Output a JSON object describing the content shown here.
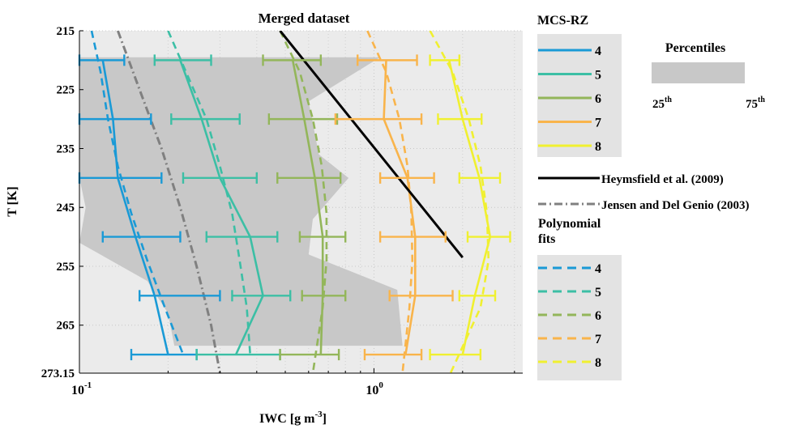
{
  "chart_data": {
    "type": "line",
    "title": "Merged dataset",
    "xlabel": "IWC  [g m",
    "xlabel_exp": "-3",
    "xlabel_close": "]",
    "ylabel": "T [K]",
    "xscale": "log",
    "xlim": [
      0.1,
      3.2
    ],
    "ylim": [
      273.15,
      215
    ],
    "yticks": [
      "215",
      "225",
      "235",
      "245",
      "255",
      "265",
      "273.15"
    ],
    "ytick_values": [
      215,
      225,
      235,
      245,
      255,
      265,
      273.15
    ],
    "xticks": [
      {
        "base": "10",
        "exp": "-1",
        "value": 0.1
      },
      {
        "base": "10",
        "exp": "0",
        "value": 1
      }
    ],
    "grid": true,
    "percentile_band": {
      "low": [
        [
          219.5,
          0.1
        ],
        [
          230.5,
          0.1
        ],
        [
          240,
          0.1
        ],
        [
          245,
          0.105
        ],
        [
          251,
          0.1
        ],
        [
          257.5,
          0.17
        ],
        [
          263,
          0.2
        ],
        [
          268.5,
          0.21
        ]
      ],
      "high": [
        [
          219.5,
          1.05
        ],
        [
          227,
          0.6
        ],
        [
          236,
          0.65
        ],
        [
          240,
          0.82
        ],
        [
          247,
          0.62
        ],
        [
          253,
          0.6
        ],
        [
          259,
          1.2
        ],
        [
          268.5,
          1.25
        ]
      ]
    },
    "series": [
      {
        "name": "4",
        "color": "#1a9ad6",
        "group": "mcs",
        "x": [
          0.12,
          0.13,
          0.135,
          0.155,
          0.18,
          0.2
        ],
        "y": [
          220,
          230,
          240,
          250,
          260,
          270
        ],
        "err_low": [
          0.1,
          0.1,
          0.1,
          0.12,
          0.16,
          0.15
        ],
        "err_high": [
          0.142,
          0.175,
          0.19,
          0.22,
          0.3,
          0.25
        ]
      },
      {
        "name": "5",
        "color": "#3cbfa5",
        "group": "mcs",
        "x": [
          0.22,
          0.26,
          0.3,
          0.38,
          0.42,
          0.34
        ],
        "y": [
          220,
          230,
          240,
          250,
          260,
          270
        ],
        "err_low": [
          0.18,
          0.205,
          0.225,
          0.27,
          0.33,
          0.25
        ],
        "err_high": [
          0.28,
          0.35,
          0.4,
          0.47,
          0.52,
          0.48
        ]
      },
      {
        "name": "6",
        "color": "#93b65a",
        "group": "mcs",
        "x": [
          0.53,
          0.58,
          0.63,
          0.67,
          0.67,
          0.66
        ],
        "y": [
          220,
          230,
          240,
          250,
          260,
          270
        ],
        "err_low": [
          0.42,
          0.44,
          0.47,
          0.56,
          0.57,
          0.48
        ],
        "err_high": [
          0.66,
          0.75,
          0.77,
          0.8,
          0.8,
          0.76
        ]
      },
      {
        "name": "7",
        "color": "#f9b44b",
        "group": "mcs",
        "x": [
          1.1,
          1.08,
          1.3,
          1.38,
          1.38,
          1.28
        ],
        "y": [
          220,
          230,
          240,
          250,
          260,
          270
        ],
        "err_low": [
          0.88,
          0.74,
          1.05,
          1.05,
          1.13,
          0.93
        ],
        "err_high": [
          1.4,
          1.45,
          1.6,
          1.75,
          1.85,
          1.45
        ]
      },
      {
        "name": "8",
        "color": "#f0f030",
        "group": "mcs",
        "x": [
          1.8,
          2.0,
          2.28,
          2.48,
          2.2,
          2.0
        ],
        "y": [
          220,
          230,
          240,
          250,
          260,
          270
        ],
        "err_low": [
          1.55,
          1.65,
          1.95,
          2.08,
          1.95,
          1.55
        ],
        "err_high": [
          1.95,
          2.32,
          2.68,
          2.9,
          2.58,
          2.3
        ]
      },
      {
        "name": "4",
        "color": "#1a9ad6",
        "group": "poly",
        "dash": "9,6",
        "x": [
          0.11,
          0.118,
          0.125,
          0.135,
          0.15,
          0.17,
          0.195,
          0.225
        ],
        "y": [
          215,
          222,
          230,
          238,
          246,
          254,
          262,
          270
        ]
      },
      {
        "name": "5",
        "color": "#3cbfa5",
        "group": "poly",
        "dash": "9,6",
        "x": [
          0.2,
          0.23,
          0.27,
          0.3,
          0.33,
          0.35,
          0.37,
          0.38
        ],
        "y": [
          215,
          222,
          230,
          238,
          246,
          254,
          262,
          270
        ]
      },
      {
        "name": "6",
        "color": "#93b65a",
        "group": "poly",
        "dash": "9,6",
        "x": [
          0.48,
          0.56,
          0.62,
          0.665,
          0.69,
          0.69,
          0.67,
          0.62
        ],
        "y": [
          215,
          222,
          230,
          238,
          246,
          254,
          262,
          273.15
        ]
      },
      {
        "name": "7",
        "color": "#f9b44b",
        "group": "poly",
        "dash": "9,6",
        "x": [
          0.95,
          1.1,
          1.22,
          1.3,
          1.34,
          1.35,
          1.32,
          1.25
        ],
        "y": [
          215,
          222,
          230,
          238,
          246,
          254,
          262,
          273.15
        ]
      },
      {
        "name": "8",
        "color": "#f0f030",
        "group": "poly",
        "dash": "9,6",
        "x": [
          1.55,
          1.85,
          2.1,
          2.3,
          2.42,
          2.45,
          2.3,
          1.82
        ],
        "y": [
          215,
          222,
          230,
          238,
          246,
          254,
          262,
          273.15
        ]
      },
      {
        "name": "Heymsfield et al. (2009)",
        "color": "#000000",
        "group": "ref",
        "x": [
          0.48,
          2.0
        ],
        "y": [
          215,
          253.5
        ]
      },
      {
        "name": "Jensen and Del Genio (2003)",
        "color": "#808080",
        "group": "ref",
        "dash": "10,4,2,4",
        "x": [
          0.135,
          0.16,
          0.19,
          0.22,
          0.25,
          0.28,
          0.3
        ],
        "y": [
          215,
          225,
          235,
          245,
          255,
          265,
          273.15
        ]
      }
    ],
    "legend": {
      "mcs_title": "MCS-RZ",
      "poly_title": "Polynomial",
      "poly_title2": "fits",
      "percentiles_title": "Percentiles",
      "p25_base": "25",
      "p75_base": "75",
      "p_sup": "th",
      "heymsfield_label": "Heymsfield et al. (2009)",
      "jensen_label": "Jensen and Del Genio (2003)"
    },
    "colors": {
      "axes_bg": "#ebebeb",
      "band": "#c8c8c8",
      "legend_box": "#e3e3e3"
    }
  }
}
